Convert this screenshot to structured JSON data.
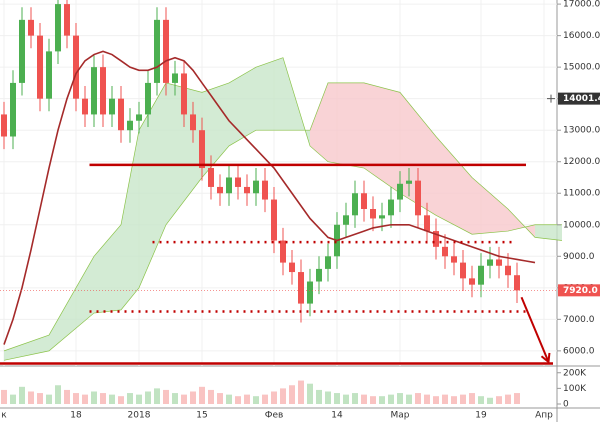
{
  "chart_data": {
    "type": "candlestick",
    "categories": [
      "к",
      null,
      null,
      null,
      null,
      null,
      null,
      null,
      "18",
      null,
      null,
      null,
      null,
      null,
      null,
      "2018",
      null,
      null,
      null,
      null,
      null,
      null,
      "15",
      null,
      null,
      null,
      null,
      null,
      null,
      null,
      "Фев",
      null,
      null,
      null,
      null,
      null,
      null,
      "14",
      null,
      null,
      null,
      null,
      null,
      null,
      "Мар",
      null,
      null,
      null,
      null,
      null,
      null,
      null,
      null,
      "19",
      null,
      null,
      null,
      null,
      null,
      null,
      "Апр",
      null
    ],
    "open": [
      13500,
      12800,
      14500,
      16500,
      16000,
      14000,
      15500,
      17000,
      16000,
      14000,
      13500,
      15000,
      13500,
      14000,
      13000,
      13300,
      13500,
      14500,
      16500,
      14500,
      14800,
      13500,
      13000,
      11800,
      11200,
      11000,
      11500,
      11200,
      11000,
      11400,
      10800,
      9500,
      8800,
      8500,
      7500,
      8200,
      8600,
      9000,
      10000,
      10300,
      11000,
      10500,
      10200,
      10300,
      10800,
      11300,
      11400,
      10300,
      9800,
      9300,
      9000,
      8800,
      8300,
      8100,
      8700,
      8900,
      8700,
      8400,
      null,
      null,
      null,
      null
    ],
    "high": [
      13900,
      14900,
      16900,
      16900,
      16400,
      15900,
      17400,
      17400,
      16400,
      14400,
      15400,
      15400,
      14400,
      14400,
      13700,
      13900,
      14900,
      16900,
      16900,
      15200,
      15200,
      13900,
      13400,
      12200,
      11600,
      11900,
      11900,
      11600,
      11800,
      11800,
      11200,
      9900,
      9200,
      8900,
      8600,
      9000,
      9400,
      10400,
      10700,
      11400,
      11400,
      10900,
      10700,
      11200,
      11700,
      11800,
      11800,
      10700,
      10200,
      9700,
      9400,
      9200,
      8700,
      9100,
      9300,
      9300,
      9100,
      8800,
      null,
      null,
      null,
      null
    ],
    "low": [
      12400,
      12400,
      14100,
      15600,
      13600,
      13600,
      15100,
      15600,
      13600,
      13100,
      13100,
      13100,
      13100,
      12600,
      12600,
      12900,
      13100,
      14100,
      14100,
      14100,
      13100,
      12600,
      11400,
      10800,
      10600,
      10600,
      10800,
      10600,
      10600,
      10400,
      9100,
      8400,
      8100,
      6900,
      7100,
      7800,
      8200,
      8600,
      9600,
      9900,
      10100,
      9800,
      9800,
      9900,
      10400,
      10900,
      9900,
      9400,
      8900,
      8600,
      8400,
      7900,
      7700,
      7700,
      8300,
      8300,
      8000,
      7520,
      null,
      null,
      null,
      null
    ],
    "close": [
      12800,
      14500,
      16500,
      16000,
      14000,
      15500,
      17000,
      16000,
      14000,
      13500,
      15000,
      13500,
      14000,
      13000,
      13300,
      13500,
      14500,
      16500,
      14500,
      14800,
      13500,
      13000,
      11800,
      11200,
      11000,
      11500,
      11200,
      11000,
      11400,
      10800,
      9500,
      8800,
      8500,
      7500,
      8200,
      8600,
      9000,
      10000,
      10300,
      11000,
      10500,
      10200,
      10300,
      10800,
      11300,
      11400,
      10300,
      9800,
      9300,
      9000,
      8800,
      8300,
      8100,
      8700,
      8900,
      8700,
      8400,
      7920,
      null,
      null,
      null,
      null
    ],
    "up_color": "#4caf50",
    "down_color": "#ef5350",
    "ylim": [
      5520,
      17130
    ],
    "yticks": [
      {
        "value": 6000,
        "label": "6000.0"
      },
      {
        "value": 7000,
        "label": "7000.0"
      },
      {
        "value": 8000,
        "label": "8000.0"
      },
      {
        "value": 9000,
        "label": "9000.0"
      },
      {
        "value": 10000,
        "label": "10000.0"
      },
      {
        "value": 11000,
        "label": "11000.0"
      },
      {
        "value": 12000,
        "label": "12000.0"
      },
      {
        "value": 13000,
        "label": "13000.0"
      },
      {
        "value": 14000,
        "label": "14000.0"
      },
      {
        "value": 15000,
        "label": "15000.0"
      },
      {
        "value": 16000,
        "label": "16000.0"
      },
      {
        "value": 17000,
        "label": "17000.0"
      }
    ],
    "grid": true,
    "moving_average": {
      "color": "#a52a2a",
      "values": [
        6200,
        7000,
        8000,
        9200,
        10500,
        11800,
        13000,
        14000,
        14800,
        15200,
        15400,
        15500,
        15400,
        15200,
        15000,
        14900,
        14900,
        15000,
        15200,
        15300,
        15200,
        14900,
        14500,
        14100,
        13700,
        13300,
        13000,
        12700,
        12400,
        12100,
        11800,
        11400,
        11000,
        10600,
        10200,
        9900,
        9600,
        9500,
        9600,
        9700,
        9800,
        9900,
        9950,
        10000,
        10000,
        10000,
        9900,
        9800,
        9700,
        9600,
        9500,
        9400,
        9300,
        9200,
        9100,
        9000,
        8950,
        8900,
        8850,
        8800,
        null,
        null
      ]
    },
    "cloud": {
      "up_color": "#c8e6c9",
      "down_color": "#f8c8cc",
      "edge_color": "#8bc34a",
      "x": [
        0,
        5,
        10,
        13,
        15,
        18,
        22,
        25,
        28,
        31,
        34,
        36,
        40,
        44,
        48,
        52,
        56,
        59,
        62
      ],
      "span_a": [
        6000,
        6500,
        9000,
        10000,
        13000,
        14500,
        14200,
        14500,
        15000,
        15300,
        12500,
        12000,
        11800,
        11000,
        10300,
        9700,
        9800,
        10000,
        10000
      ],
      "span_b": [
        5700,
        6000,
        7200,
        7300,
        8000,
        10000,
        11500,
        12500,
        13000,
        13000,
        13000,
        14500,
        14500,
        14200,
        12800,
        11500,
        10500,
        9600,
        9500
      ]
    },
    "levels": [
      {
        "value": 11900,
        "style": "solid",
        "x": [
          9.5,
          58
        ]
      },
      {
        "value": 5600,
        "style": "solid",
        "x": [
          -0.5,
          61
        ]
      },
      {
        "value": 9450,
        "style": "dotted",
        "x": [
          16.5,
          56.5
        ]
      },
      {
        "value": 7250,
        "style": "dotted",
        "x": [
          9.5,
          58.5
        ]
      }
    ],
    "level_color": "#c00000",
    "arrow": {
      "x": [
        57.5,
        60.5
      ],
      "y": [
        7700,
        5650
      ]
    },
    "price_markers": [
      {
        "value": 7920,
        "label": "7920.0",
        "color": "#ef5350"
      },
      {
        "value": 14001.4,
        "label": "14001.4",
        "color": "#333333"
      }
    ],
    "volume": {
      "values": [
        90000,
        60000,
        110000,
        80000,
        70000,
        60000,
        120000,
        90000,
        70000,
        60000,
        80000,
        70000,
        60000,
        50000,
        70000,
        60000,
        80000,
        100000,
        90000,
        70000,
        60000,
        80000,
        110000,
        90000,
        70000,
        60000,
        50000,
        60000,
        50000,
        60000,
        80000,
        100000,
        120000,
        150000,
        130000,
        90000,
        80000,
        70000,
        60000,
        70000,
        60000,
        50000,
        50000,
        60000,
        70000,
        60000,
        70000,
        60000,
        50000,
        60000,
        50000,
        60000,
        70000,
        50000,
        40000,
        50000,
        60000,
        70000,
        null,
        null,
        null,
        null
      ],
      "ylim": [
        0,
        240000
      ],
      "yticks": [
        {
          "value": 0,
          "label": "0"
        },
        {
          "value": 100000,
          "label": "100K"
        },
        {
          "value": 200000,
          "label": "200K"
        }
      ]
    }
  }
}
